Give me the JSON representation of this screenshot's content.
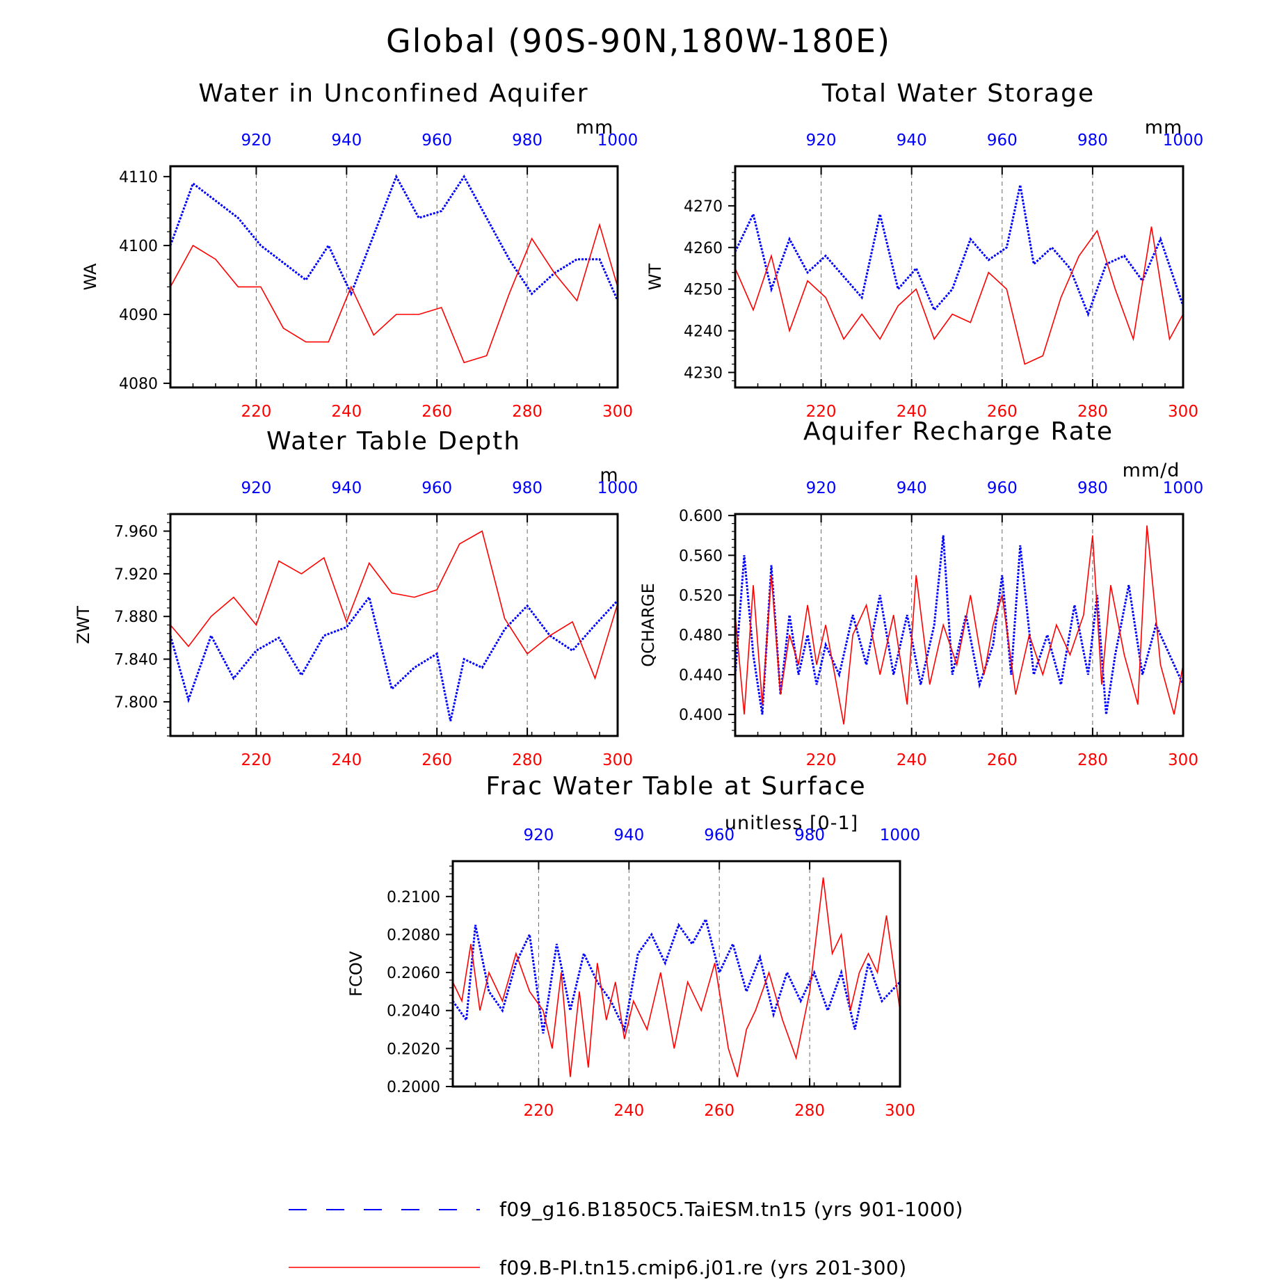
{
  "figure": {
    "title": "Global (90S-90N,180W-180E)",
    "colors": {
      "blue": "#0000ff",
      "red": "#ff0000",
      "grid": "#666666"
    },
    "legend": [
      {
        "name": "f09_g16.B1850C5.TaiESM.tn15 (yrs 901-1000)",
        "color": "#0000ff",
        "style": "dashed"
      },
      {
        "name": "f09.B-PI.tn15.cmip6.j01.re (yrs 201-300)",
        "color": "#ff0000",
        "style": "solid"
      }
    ]
  },
  "chart_data": [
    {
      "type": "line",
      "title": "Water in Unconfined Aquifer",
      "units": "mm",
      "ylabel": "WA",
      "xlim_bottom": [
        201,
        300
      ],
      "xticks_bottom": [
        220,
        240,
        260,
        280,
        300
      ],
      "xlim_top": [
        901,
        1000
      ],
      "xticks_top": [
        920,
        940,
        960,
        980,
        1000
      ],
      "ylim": [
        4079.4,
        4111.5
      ],
      "yticks": [
        {
          "value": 4080,
          "label": "4080"
        },
        {
          "value": 4090,
          "label": "4090"
        },
        {
          "value": 4100,
          "label": "4100"
        },
        {
          "value": 4110,
          "label": "4110"
        }
      ],
      "grid": "vertical dashed at bottom ticks",
      "series": [
        {
          "name": "f09_g16.B1850C5.TaiESM.tn15 (yrs 901-1000)",
          "axis": "top",
          "color": "#0000ff",
          "style": "dotted",
          "x": [
            901,
            906,
            916,
            921,
            931,
            936,
            941,
            951,
            956,
            961,
            966,
            976,
            981,
            986,
            991,
            996,
            1000
          ],
          "y": [
            4100,
            4109,
            4104,
            4100,
            4095,
            4100,
            4093,
            4110,
            4104,
            4105,
            4110,
            4098,
            4093,
            4096,
            4098,
            4098,
            4092
          ]
        },
        {
          "name": "f09.B-PI.tn15.cmip6.j01.re (yrs 201-300)",
          "axis": "bottom",
          "color": "#ff0000",
          "style": "solid",
          "x": [
            201,
            206,
            211,
            216,
            221,
            226,
            231,
            236,
            241,
            246,
            251,
            256,
            261,
            266,
            271,
            276,
            281,
            286,
            291,
            296,
            300
          ],
          "y": [
            4094,
            4100,
            4098,
            4094,
            4094,
            4088,
            4086,
            4086,
            4094,
            4087,
            4090,
            4090,
            4091,
            4083,
            4084,
            4093,
            4101,
            4096,
            4092,
            4103,
            4094
          ]
        }
      ]
    },
    {
      "type": "line",
      "title": "Total Water Storage",
      "units": "mm",
      "ylabel": "WT",
      "xlim_bottom": [
        201,
        300
      ],
      "xticks_bottom": [
        220,
        240,
        260,
        280,
        300
      ],
      "xlim_top": [
        901,
        1000
      ],
      "xticks_top": [
        920,
        940,
        960,
        980,
        1000
      ],
      "ylim": [
        4226.4,
        4279.5
      ],
      "yticks": [
        {
          "value": 4230,
          "label": "4230"
        },
        {
          "value": 4240,
          "label": "4240"
        },
        {
          "value": 4250,
          "label": "4250"
        },
        {
          "value": 4260,
          "label": "4260"
        },
        {
          "value": 4270,
          "label": "4270"
        }
      ],
      "grid": "vertical dashed at bottom ticks",
      "series": [
        {
          "name": "f09_g16.B1850C5.TaiESM.tn15 (yrs 901-1000)",
          "axis": "top",
          "color": "#0000ff",
          "style": "dotted",
          "x": [
            901,
            905,
            909,
            913,
            917,
            921,
            925,
            929,
            933,
            937,
            941,
            945,
            949,
            953,
            957,
            961,
            964,
            967,
            971,
            975,
            979,
            983,
            987,
            991,
            995,
            1000
          ],
          "y": [
            4259,
            4268,
            4250,
            4262,
            4254,
            4258,
            4253,
            4248,
            4268,
            4250,
            4255,
            4245,
            4250,
            4262,
            4257,
            4260,
            4275,
            4256,
            4260,
            4255,
            4244,
            4256,
            4258,
            4252,
            4262,
            4246
          ]
        },
        {
          "name": "f09.B-PI.tn15.cmip6.j01.re (yrs 201-300)",
          "axis": "bottom",
          "color": "#ff0000",
          "style": "solid",
          "x": [
            201,
            205,
            209,
            213,
            217,
            221,
            225,
            229,
            233,
            237,
            241,
            245,
            249,
            253,
            257,
            261,
            265,
            269,
            273,
            277,
            281,
            285,
            289,
            293,
            297,
            300
          ],
          "y": [
            4255,
            4245,
            4258,
            4240,
            4252,
            4248,
            4238,
            4244,
            4238,
            4246,
            4250,
            4238,
            4244,
            4242,
            4254,
            4250,
            4232,
            4234,
            4248,
            4258,
            4264,
            4250,
            4238,
            4265,
            4238,
            4244
          ]
        }
      ]
    },
    {
      "type": "line",
      "title": "Water Table Depth",
      "units": "m",
      "ylabel": "ZWT",
      "xlim_bottom": [
        201,
        300
      ],
      "xticks_bottom": [
        220,
        240,
        260,
        280,
        300
      ],
      "xlim_top": [
        901,
        1000
      ],
      "xticks_top": [
        920,
        940,
        960,
        980,
        1000
      ],
      "ylim": [
        7.768,
        7.976
      ],
      "yticks": [
        {
          "value": 7.8,
          "label": "7.800"
        },
        {
          "value": 7.84,
          "label": "7.840"
        },
        {
          "value": 7.88,
          "label": "7.880"
        },
        {
          "value": 7.92,
          "label": "7.920"
        },
        {
          "value": 7.96,
          "label": "7.960"
        }
      ],
      "grid": "vertical dashed at bottom ticks",
      "series": [
        {
          "name": "f09_g16.B1850C5.TaiESM.tn15 (yrs 901-1000)",
          "axis": "top",
          "color": "#0000ff",
          "style": "dotted",
          "x": [
            901,
            905,
            910,
            915,
            920,
            925,
            930,
            935,
            940,
            945,
            950,
            955,
            960,
            963,
            966,
            970,
            975,
            980,
            985,
            990,
            995,
            1000
          ],
          "y": [
            7.862,
            7.802,
            7.862,
            7.822,
            7.848,
            7.86,
            7.825,
            7.862,
            7.87,
            7.898,
            7.812,
            7.832,
            7.845,
            7.782,
            7.84,
            7.832,
            7.868,
            7.89,
            7.862,
            7.848,
            7.872,
            7.895
          ]
        },
        {
          "name": "f09.B-PI.tn15.cmip6.j01.re (yrs 201-300)",
          "axis": "bottom",
          "color": "#ff0000",
          "style": "solid",
          "x": [
            201,
            205,
            210,
            215,
            220,
            225,
            230,
            235,
            240,
            245,
            250,
            255,
            260,
            265,
            270,
            275,
            280,
            285,
            290,
            295,
            300
          ],
          "y": [
            7.872,
            7.852,
            7.88,
            7.898,
            7.872,
            7.932,
            7.92,
            7.935,
            7.875,
            7.93,
            7.902,
            7.898,
            7.905,
            7.948,
            7.96,
            7.878,
            7.845,
            7.862,
            7.875,
            7.822,
            7.892
          ]
        }
      ]
    },
    {
      "type": "line",
      "title": "Aquifer Recharge Rate",
      "units": "mm/d",
      "ylabel": "QCHARGE",
      "xlim_bottom": [
        201,
        300
      ],
      "xticks_bottom": [
        220,
        240,
        260,
        280,
        300
      ],
      "xlim_top": [
        901,
        1000
      ],
      "xticks_top": [
        920,
        940,
        960,
        980,
        1000
      ],
      "ylim": [
        0.3784,
        0.6015
      ],
      "yticks": [
        {
          "value": 0.4,
          "label": "0.400"
        },
        {
          "value": 0.44,
          "label": "0.440"
        },
        {
          "value": 0.48,
          "label": "0.480"
        },
        {
          "value": 0.52,
          "label": "0.520"
        },
        {
          "value": 0.56,
          "label": "0.560"
        },
        {
          "value": 0.6,
          "label": "0.600"
        }
      ],
      "grid": "vertical dashed at bottom ticks",
      "series": [
        {
          "name": "f09_g16.B1850C5.TaiESM.tn15 (yrs 901-1000)",
          "axis": "top",
          "color": "#0000ff",
          "style": "dotted",
          "x": [
            901,
            903,
            905,
            907,
            909,
            911,
            913,
            915,
            917,
            919,
            921,
            924,
            927,
            930,
            933,
            936,
            939,
            942,
            945,
            947,
            949,
            952,
            955,
            958,
            960,
            962,
            964,
            967,
            970,
            973,
            976,
            979,
            981,
            983,
            985,
            988,
            991,
            994,
            997,
            1000
          ],
          "y": [
            0.44,
            0.56,
            0.46,
            0.4,
            0.55,
            0.42,
            0.5,
            0.44,
            0.48,
            0.43,
            0.47,
            0.44,
            0.5,
            0.45,
            0.52,
            0.44,
            0.5,
            0.43,
            0.49,
            0.58,
            0.44,
            0.5,
            0.43,
            0.47,
            0.54,
            0.44,
            0.57,
            0.44,
            0.48,
            0.43,
            0.51,
            0.44,
            0.52,
            0.4,
            0.46,
            0.53,
            0.44,
            0.49,
            0.46,
            0.43
          ]
        },
        {
          "name": "f09.B-PI.tn15.cmip6.j01.re (yrs 201-300)",
          "axis": "bottom",
          "color": "#ff0000",
          "style": "solid",
          "x": [
            201,
            203,
            205,
            207,
            209,
            211,
            213,
            215,
            217,
            219,
            221,
            223,
            225,
            227,
            230,
            233,
            236,
            239,
            241,
            244,
            247,
            250,
            253,
            256,
            258,
            260,
            263,
            266,
            269,
            272,
            275,
            278,
            280,
            282,
            284,
            287,
            290,
            292,
            295,
            298,
            300
          ],
          "y": [
            0.5,
            0.4,
            0.53,
            0.41,
            0.54,
            0.42,
            0.48,
            0.45,
            0.51,
            0.45,
            0.49,
            0.44,
            0.39,
            0.48,
            0.51,
            0.44,
            0.5,
            0.41,
            0.54,
            0.43,
            0.49,
            0.45,
            0.52,
            0.44,
            0.49,
            0.52,
            0.42,
            0.48,
            0.44,
            0.49,
            0.46,
            0.5,
            0.58,
            0.43,
            0.53,
            0.46,
            0.41,
            0.59,
            0.45,
            0.4,
            0.45
          ]
        }
      ]
    },
    {
      "type": "line",
      "title": "Frac Water Table at Surface",
      "units": "unitless [0-1]",
      "ylabel": "FCOV",
      "xlim_bottom": [
        201,
        300
      ],
      "xticks_bottom": [
        220,
        240,
        260,
        280,
        300
      ],
      "xlim_top": [
        901,
        1000
      ],
      "xticks_top": [
        920,
        940,
        960,
        980,
        1000
      ],
      "ylim": [
        0.2,
        0.21186
      ],
      "yticks": [
        {
          "value": 0.2,
          "label": "0.2000"
        },
        {
          "value": 0.202,
          "label": "0.2020"
        },
        {
          "value": 0.204,
          "label": "0.2040"
        },
        {
          "value": 0.206,
          "label": "0.2060"
        },
        {
          "value": 0.208,
          "label": "0.2080"
        },
        {
          "value": 0.21,
          "label": "0.2100"
        }
      ],
      "grid": "vertical dashed at bottom ticks",
      "series": [
        {
          "name": "f09_g16.B1850C5.TaiESM.tn15 (yrs 901-1000)",
          "axis": "top",
          "color": "#0000ff",
          "style": "dotted",
          "x": [
            901,
            904,
            906,
            909,
            912,
            915,
            918,
            921,
            924,
            927,
            930,
            933,
            936,
            939,
            942,
            945,
            948,
            951,
            954,
            957,
            960,
            963,
            966,
            969,
            972,
            975,
            978,
            981,
            984,
            987,
            990,
            993,
            996,
            1000
          ],
          "y": [
            0.2045,
            0.2035,
            0.2085,
            0.205,
            0.204,
            0.2065,
            0.208,
            0.2028,
            0.2075,
            0.204,
            0.207,
            0.2055,
            0.2045,
            0.203,
            0.207,
            0.208,
            0.2065,
            0.2085,
            0.2075,
            0.2088,
            0.206,
            0.2075,
            0.205,
            0.2068,
            0.2038,
            0.206,
            0.2045,
            0.206,
            0.204,
            0.206,
            0.203,
            0.2065,
            0.2045,
            0.2055
          ]
        },
        {
          "name": "f09.B-PI.tn15.cmip6.j01.re (yrs 201-300)",
          "axis": "bottom",
          "color": "#ff0000",
          "style": "solid",
          "x": [
            201,
            203,
            205,
            207,
            209,
            212,
            215,
            218,
            221,
            223,
            225,
            227,
            229,
            231,
            233,
            235,
            237,
            239,
            241,
            244,
            247,
            250,
            253,
            256,
            259,
            262,
            264,
            266,
            268,
            271,
            274,
            277,
            280,
            283,
            285,
            287,
            289,
            291,
            293,
            295,
            297,
            300
          ],
          "y": [
            0.2055,
            0.2045,
            0.2075,
            0.204,
            0.206,
            0.2045,
            0.207,
            0.205,
            0.204,
            0.202,
            0.206,
            0.2005,
            0.205,
            0.201,
            0.2065,
            0.2035,
            0.2055,
            0.2025,
            0.2045,
            0.203,
            0.206,
            0.202,
            0.2055,
            0.204,
            0.2065,
            0.202,
            0.2005,
            0.203,
            0.204,
            0.206,
            0.2035,
            0.2015,
            0.205,
            0.211,
            0.207,
            0.208,
            0.204,
            0.206,
            0.207,
            0.206,
            0.209,
            0.204
          ]
        }
      ]
    }
  ]
}
